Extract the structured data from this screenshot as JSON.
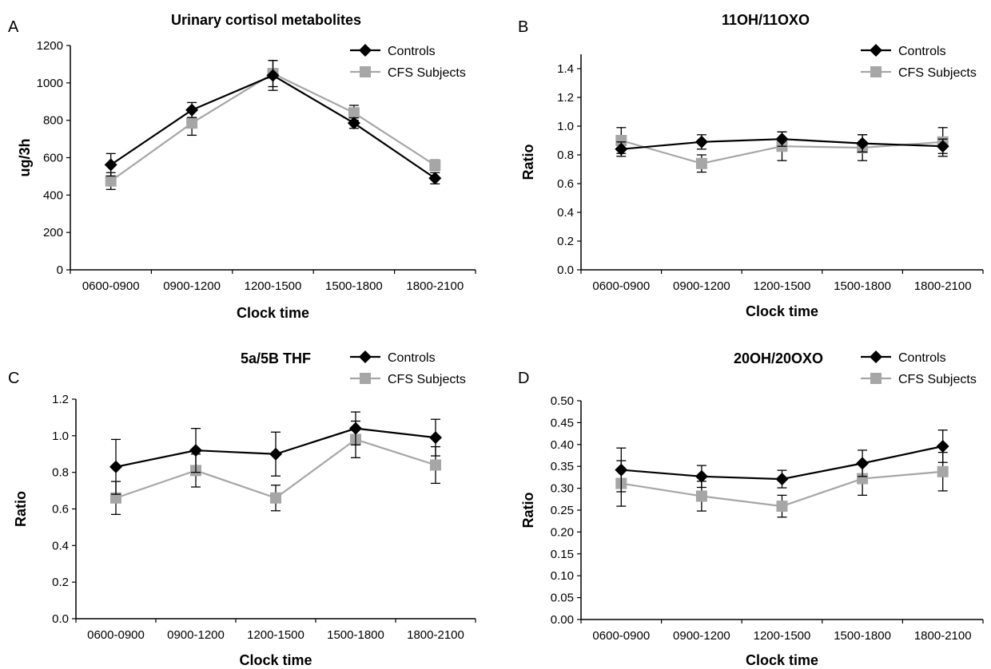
{
  "chart_data": [
    {
      "panel": "A",
      "type": "line",
      "title": "Urinary cortisol metabolites",
      "xlabel": "Clock time",
      "ylabel": "ug/3h",
      "categories": [
        "0600-0900",
        "0900-1200",
        "1200-1500",
        "1500-1800",
        "1800-2100"
      ],
      "ylim": [
        0,
        1200
      ],
      "yticks": [
        0,
        200,
        400,
        600,
        800,
        1000,
        1200
      ],
      "ytick_labels": [
        "0",
        "200",
        "400",
        "600",
        "800",
        "1000",
        "1200"
      ],
      "legend": "top-right",
      "series": [
        {
          "name": "Controls",
          "marker": "diamond",
          "color": "#000000",
          "values": [
            562,
            855,
            1040,
            785,
            490
          ],
          "error": [
            60,
            40,
            80,
            28,
            30
          ]
        },
        {
          "name": "CFS Subjects",
          "marker": "square",
          "color": "#a6a6a6",
          "values": [
            475,
            785,
            1050,
            840,
            560
          ],
          "error": [
            45,
            65,
            70,
            40,
            28
          ]
        }
      ]
    },
    {
      "panel": "B",
      "type": "line",
      "title": "11OH/11OXO",
      "xlabel": "Clock time",
      "ylabel": "Ratio",
      "categories": [
        "0600-0900",
        "0900-1200",
        "1200-1500",
        "1500-1800",
        "1800-2100"
      ],
      "ylim": [
        0,
        1.5
      ],
      "yticks": [
        0,
        0.2,
        0.4,
        0.6,
        0.8,
        1.0,
        1.2,
        1.4
      ],
      "ytick_labels": [
        "0.0",
        "0.2",
        "0.4",
        "0.6",
        "0.8",
        "1.0",
        "1.2",
        "1.4"
      ],
      "legend": "top-right",
      "series": [
        {
          "name": "Controls",
          "marker": "diamond",
          "color": "#000000",
          "values": [
            0.84,
            0.89,
            0.91,
            0.88,
            0.86
          ],
          "error": [
            0.05,
            0.05,
            0.05,
            0.06,
            0.05
          ]
        },
        {
          "name": "CFS Subjects",
          "marker": "square",
          "color": "#a6a6a6",
          "values": [
            0.9,
            0.74,
            0.86,
            0.85,
            0.89
          ],
          "error": [
            0.09,
            0.06,
            0.1,
            0.09,
            0.1
          ]
        }
      ]
    },
    {
      "panel": "C",
      "type": "line",
      "title": "5a/5B THF",
      "xlabel": "Clock time",
      "ylabel": "Ratio",
      "categories": [
        "0600-0900",
        "0900-1200",
        "1200-1500",
        "1500-1800",
        "1800-2100"
      ],
      "ylim": [
        0,
        1.2
      ],
      "yticks": [
        0,
        0.2,
        0.4,
        0.6,
        0.8,
        1.0,
        1.2
      ],
      "ytick_labels": [
        "0.0",
        "0.2",
        "0.4",
        "0.6",
        "0.8",
        "1.0",
        "1.2"
      ],
      "legend": "top-right",
      "series": [
        {
          "name": "Controls",
          "marker": "diamond",
          "color": "#000000",
          "values": [
            0.83,
            0.92,
            0.9,
            1.04,
            0.99
          ],
          "error": [
            0.15,
            0.12,
            0.12,
            0.09,
            0.1
          ]
        },
        {
          "name": "CFS Subjects",
          "marker": "square",
          "color": "#a6a6a6",
          "values": [
            0.66,
            0.81,
            0.66,
            0.98,
            0.84
          ],
          "error": [
            0.09,
            0.09,
            0.07,
            0.1,
            0.1
          ]
        }
      ]
    },
    {
      "panel": "D",
      "type": "line",
      "title": "20OH/20OXO",
      "xlabel": "Clock time",
      "ylabel": "Ratio",
      "categories": [
        "0600-0900",
        "0900-1200",
        "1200-1500",
        "1500-1800",
        "1800-2100"
      ],
      "ylim": [
        0,
        0.5
      ],
      "yticks": [
        0,
        0.05,
        0.1,
        0.15,
        0.2,
        0.25,
        0.3,
        0.35,
        0.4,
        0.45,
        0.5
      ],
      "ytick_labels": [
        "0.00",
        "0.05",
        "0.10",
        "0.15",
        "0.20",
        "0.25",
        "0.30",
        "0.35",
        "0.40",
        "0.45",
        "0.50"
      ],
      "legend": "top-right",
      "series": [
        {
          "name": "Controls",
          "marker": "diamond",
          "color": "#000000",
          "values": [
            0.342,
            0.327,
            0.321,
            0.357,
            0.396
          ],
          "error": [
            0.05,
            0.025,
            0.02,
            0.03,
            0.037
          ]
        },
        {
          "name": "CFS Subjects",
          "marker": "square",
          "color": "#a6a6a6",
          "values": [
            0.311,
            0.282,
            0.259,
            0.322,
            0.338
          ],
          "error": [
            0.052,
            0.034,
            0.025,
            0.038,
            0.044
          ]
        }
      ]
    }
  ]
}
